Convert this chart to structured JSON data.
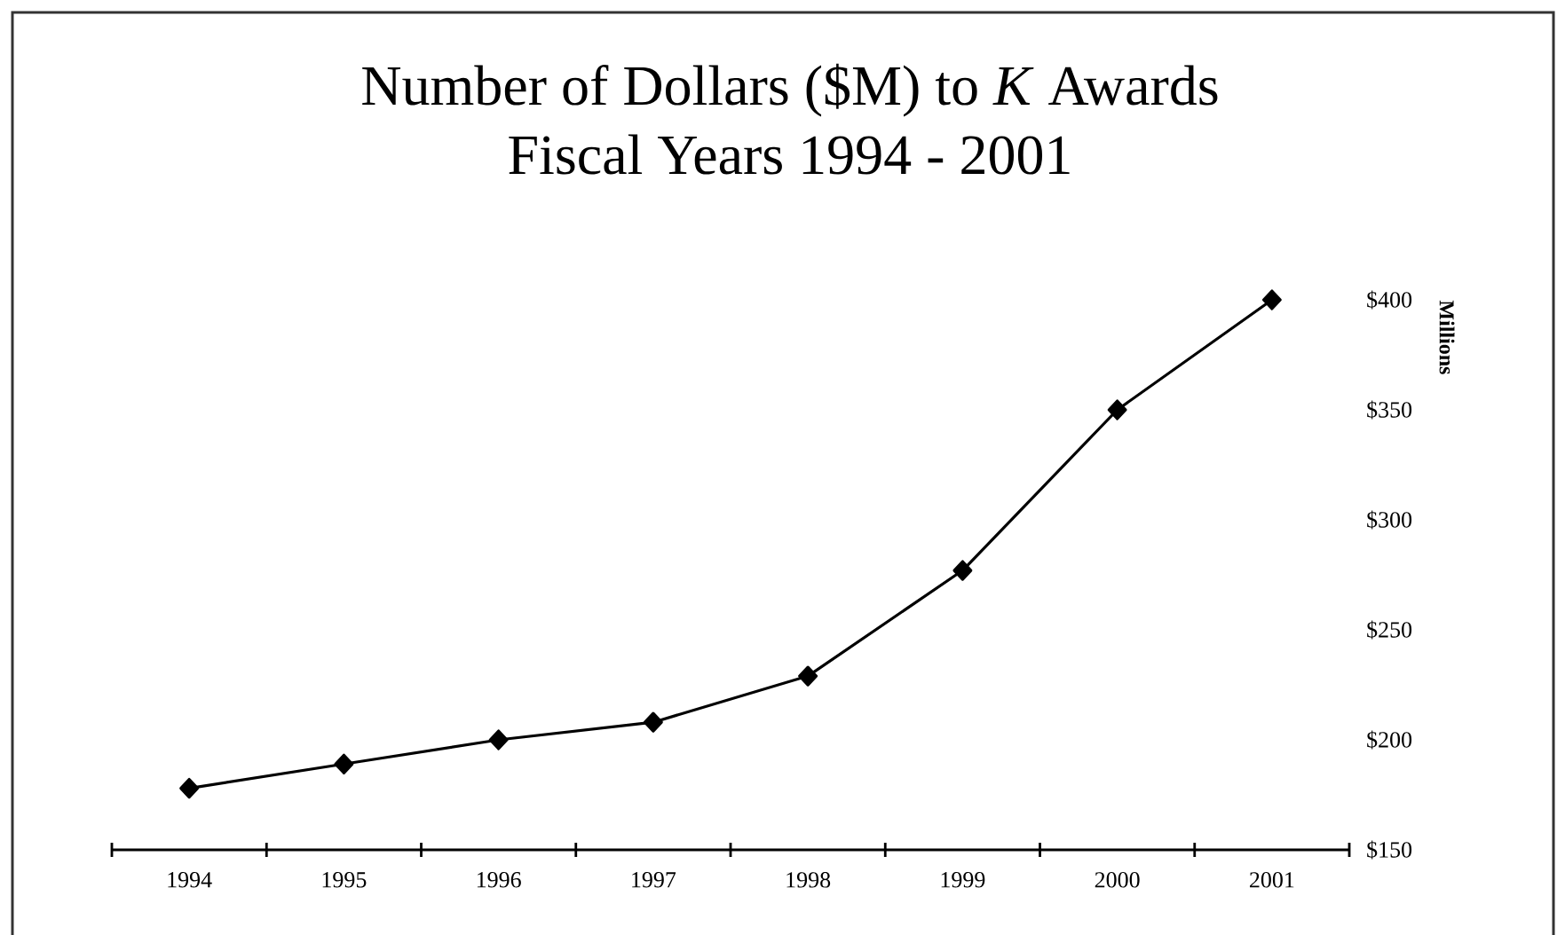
{
  "chart_data": {
    "type": "line",
    "title": "Number of Dollars ($M) to *K* Awards",
    "subtitle": "Fiscal Years 1994 - 2001",
    "ylabel": "Millions",
    "categories": [
      "1994",
      "1995",
      "1996",
      "1997",
      "1998",
      "1999",
      "2000",
      "2001"
    ],
    "series": [
      {
        "color": "#000000",
        "values": [
          178,
          189,
          200,
          208,
          229,
          277,
          350,
          400
        ]
      }
    ],
    "ylim": [
      150,
      400
    ],
    "yticks": [
      {
        "value": 150,
        "label": "$150"
      },
      {
        "value": 200,
        "label": "$200"
      },
      {
        "value": 250,
        "label": "$250"
      },
      {
        "value": 300,
        "label": "$300"
      },
      {
        "value": 350,
        "label": "$350"
      },
      {
        "value": 400,
        "label": "$400"
      }
    ],
    "marker": "diamond",
    "line_style": "solid"
  }
}
